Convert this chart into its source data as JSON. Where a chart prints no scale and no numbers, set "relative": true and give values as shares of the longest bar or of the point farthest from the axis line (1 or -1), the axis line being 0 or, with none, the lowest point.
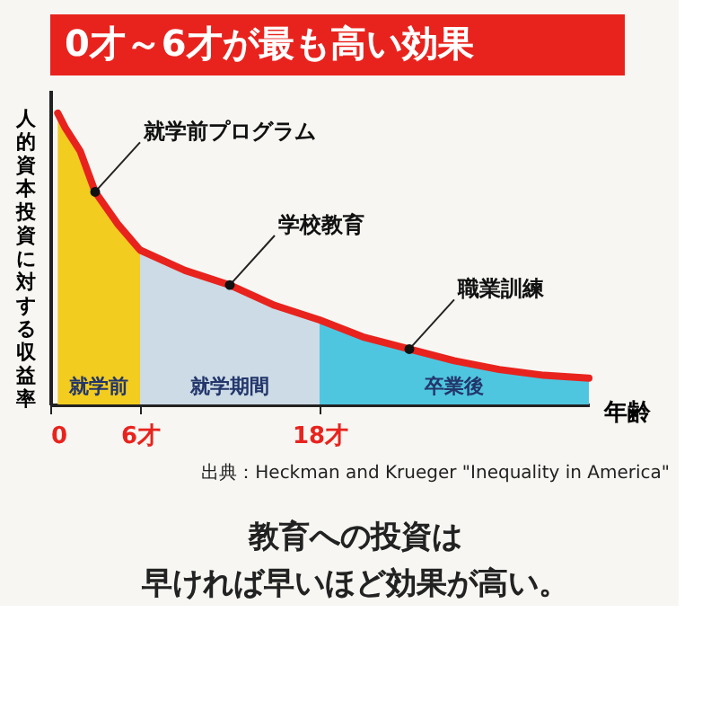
{
  "chart_data": {
    "type": "area",
    "title": "0才～6才が最も高い効果",
    "xlabel": "年齢",
    "ylabel": "人的資本投資に対する収益率",
    "relative": true,
    "grid": false,
    "line_style": "solid",
    "xlim": [
      0,
      36
    ],
    "xticks": [
      0,
      {
        "value": 6,
        "label": "6才"
      },
      {
        "value": 18,
        "label": "18才"
      }
    ],
    "series": [
      {
        "name": "就学前",
        "color": "#f2cc1f",
        "x": [
          0.5,
          1,
          2,
          3,
          4.5,
          6
        ],
        "values": [
          1.0,
          0.95,
          0.87,
          0.73,
          0.62,
          0.53
        ]
      },
      {
        "name": "就学期間",
        "color": "#ccdbe6",
        "x": [
          6,
          9,
          12,
          15,
          18
        ],
        "values": [
          0.53,
          0.46,
          0.41,
          0.34,
          0.29
        ]
      },
      {
        "name": "卒業後",
        "color": "#4fc6e0",
        "x": [
          18,
          21,
          24,
          27,
          30,
          33,
          36
        ],
        "values": [
          0.29,
          0.23,
          0.19,
          0.15,
          0.12,
          0.1,
          0.09
        ]
      },
      {
        "type": "line",
        "color": "#e8231e",
        "x": [
          0.5,
          1,
          2,
          3,
          4.5,
          6,
          9,
          12,
          15,
          18,
          21,
          24,
          27,
          30,
          33,
          36
        ],
        "values": [
          1.0,
          0.95,
          0.87,
          0.73,
          0.62,
          0.53,
          0.46,
          0.41,
          0.34,
          0.29,
          0.23,
          0.19,
          0.15,
          0.12,
          0.1,
          0.09
        ]
      }
    ],
    "annotations": [
      {
        "text": "就学前プログラム",
        "x": 3,
        "y": 0.73
      },
      {
        "text": "学校教育",
        "x": 12,
        "y": 0.41
      },
      {
        "text": "職業訓練",
        "x": 24,
        "y": 0.19
      },
      "出典：Heckman and Krueger \"Inequality in America\"",
      "教育への投資は",
      "早ければ早いほど効果が高い。"
    ]
  }
}
